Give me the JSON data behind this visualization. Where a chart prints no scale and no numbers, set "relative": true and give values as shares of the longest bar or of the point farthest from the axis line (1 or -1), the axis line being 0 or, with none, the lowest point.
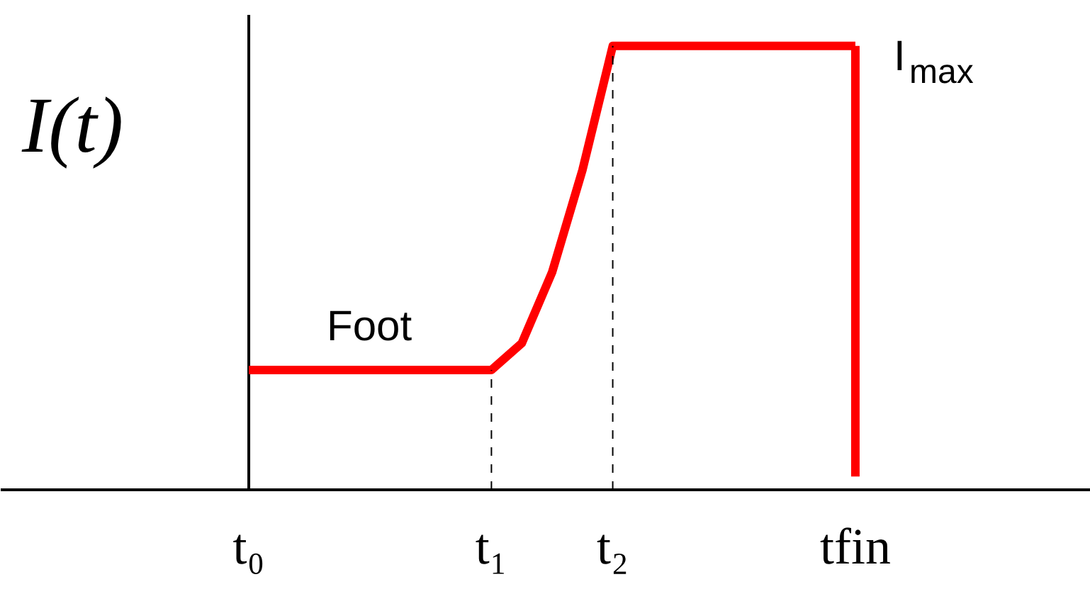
{
  "chart_data": {
    "type": "line",
    "relative": true,
    "ylabel": "I(t)",
    "categories": [
      "t₀",
      null,
      null,
      null,
      null,
      null,
      null,
      null,
      "t₁",
      null,
      null,
      null,
      "t₂",
      null,
      null,
      null,
      null,
      null,
      null,
      null,
      "tfin"
    ],
    "series": [
      {
        "color": "#ff0000",
        "values": [
          0.27,
          0.27,
          0.27,
          0.27,
          0.27,
          0.27,
          0.27,
          0.27,
          0.27,
          0.33,
          0.49,
          0.72,
          1,
          1,
          1,
          1,
          1,
          1,
          1,
          1,
          1
        ]
      }
    ],
    "ref_lines": [
      {
        "axis": "x",
        "value": "t₁",
        "line_style": "dashed",
        "color": "#000000"
      },
      {
        "axis": "x",
        "value": "t₂",
        "line_style": "dashed",
        "color": "#000000"
      },
      {
        "axis": "x",
        "value": "tfin",
        "line_style": "solid",
        "color": "#ff0000"
      }
    ],
    "annotations": [
      "Foot",
      "I$_{max}$"
    ],
    "grid": false,
    "marker": "none",
    "line_style": "solid"
  }
}
